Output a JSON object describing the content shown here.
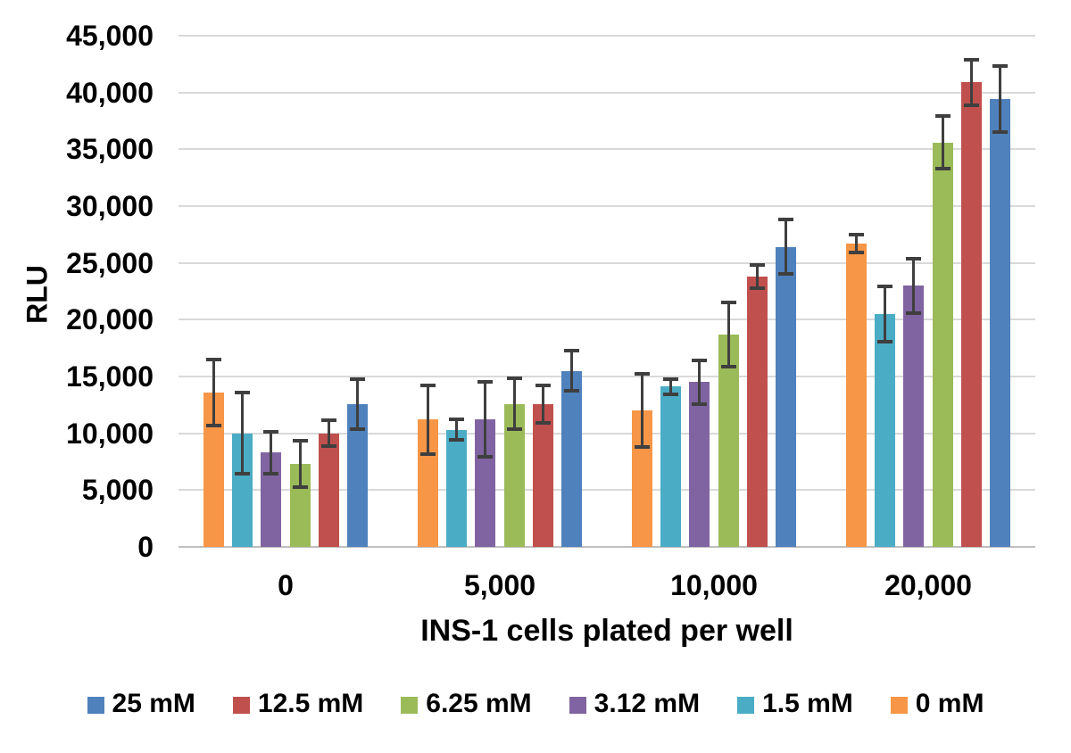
{
  "chart_data": {
    "type": "bar",
    "title": "",
    "xlabel": "INS-1 cells plated per well",
    "ylabel": "RLU",
    "categories": [
      "0",
      "5,000",
      "10,000",
      "20,000"
    ],
    "series": [
      {
        "name": "0 mM",
        "color": "#F79646",
        "values": [
          13600,
          11200,
          12000,
          26700
        ],
        "errors": [
          2900,
          3050,
          3200,
          800
        ]
      },
      {
        "name": "1.5 mM",
        "color": "#4BACC6",
        "values": [
          10000,
          10300,
          14100,
          20500
        ],
        "errors": [
          3550,
          900,
          700,
          2400
        ]
      },
      {
        "name": "3.12 mM",
        "color": "#8064A2",
        "values": [
          8300,
          11200,
          14500,
          23000
        ],
        "errors": [
          1850,
          3300,
          1950,
          2400
        ]
      },
      {
        "name": "6.25 mM",
        "color": "#9BBB59",
        "values": [
          7300,
          12600,
          18700,
          35600
        ],
        "errors": [
          2050,
          2250,
          2850,
          2300
        ]
      },
      {
        "name": "12.5 mM",
        "color": "#C0504D",
        "values": [
          10000,
          12600,
          23800,
          40900
        ],
        "errors": [
          1150,
          1650,
          1050,
          2000
        ]
      },
      {
        "name": "25 mM",
        "color": "#4F81BD",
        "values": [
          12600,
          15500,
          26400,
          39400
        ],
        "errors": [
          2200,
          1750,
          2400,
          2900
        ]
      }
    ],
    "legend": {
      "position": "bottom",
      "order": [
        "25 mM",
        "12.5 mM",
        "6.25 mM",
        "3.12 mM",
        "1.5 mM",
        "0 mM"
      ]
    },
    "ylim": [
      0,
      45000
    ],
    "ytick_values": [
      0,
      5000,
      10000,
      15000,
      20000,
      25000,
      30000,
      35000,
      40000,
      45000
    ],
    "ytick_labels": [
      "0",
      "5,000",
      "10,000",
      "15,000",
      "20,000",
      "25,000",
      "30,000",
      "35,000",
      "40,000",
      "45,000"
    ],
    "grid": true,
    "error_bars": true,
    "colors": {
      "gridline": "#d9d9d9",
      "axis_line": "#bfbfbf",
      "error_bar": "#3f3f3f",
      "text": "#000000",
      "background": "#ffffff"
    }
  }
}
